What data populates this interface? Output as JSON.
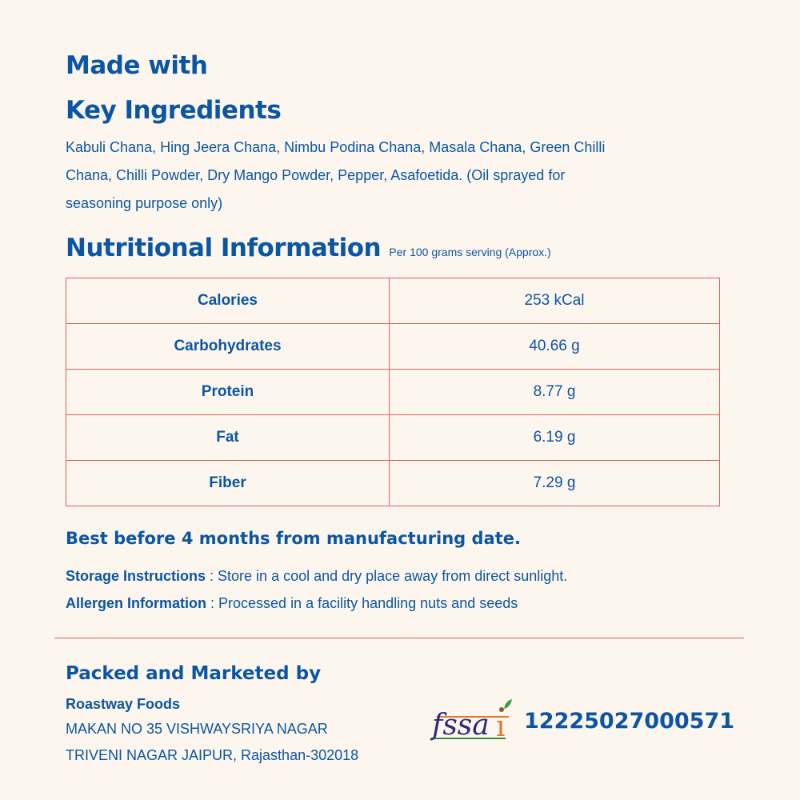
{
  "header": {
    "line1": "Made with",
    "line2": "Key Ingredients"
  },
  "ingredients": {
    "lines": [
      "Kabuli Chana, Hing Jeera Chana, Nimbu Podina Chana, Masala Chana, Green Chilli",
      "Chana, Chilli Powder, Dry Mango Powder, Pepper, Asafoetida. (Oil sprayed for",
      "seasoning purpose only)"
    ]
  },
  "nutrition": {
    "title": "Nutritional Information",
    "serving": "Per 100 grams serving (Approx.)",
    "rows": [
      {
        "name": "Calories",
        "value": "253 kCal"
      },
      {
        "name": "Carbohydrates",
        "value": "40.66 g"
      },
      {
        "name": "Protein",
        "value": "8.77 g"
      },
      {
        "name": "Fat",
        "value": "6.19 g"
      },
      {
        "name": "Fiber",
        "value": "7.29 g"
      }
    ]
  },
  "best_before": "Best before 4 months from manufacturing date.",
  "storage": {
    "label": "Storage Instructions",
    "text": " : Store in a cool and dry place away from direct sunlight."
  },
  "allergen": {
    "label": "Allergen Information",
    "text": " : Processed in a facility handling nuts and seeds"
  },
  "packer": {
    "title": "Packed and Marketed by",
    "company": "Roastway Foods",
    "address1": "MAKAN NO 35 VISHWAYSRIYA NAGAR",
    "address2": "TRIVENI NAGAR JAIPUR, Rajasthan-302018"
  },
  "fssai": {
    "logo_text": "fssai",
    "number": "12225027000571"
  },
  "colors": {
    "text": "#0b56a4",
    "border": "#d9605f",
    "background": "#fdf6ee"
  }
}
